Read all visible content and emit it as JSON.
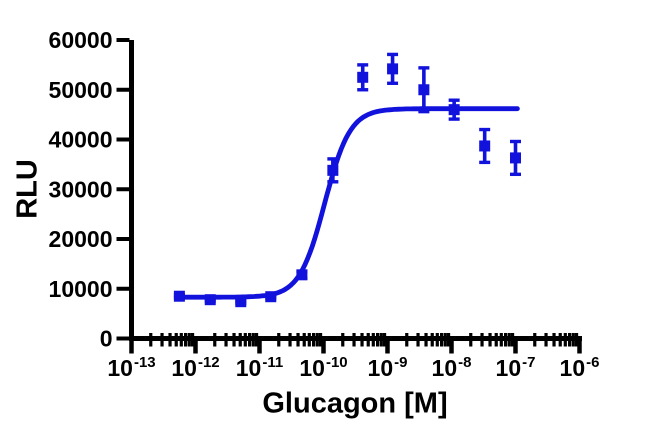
{
  "figure": {
    "background": "#ffffff",
    "series_color": "#1212dd",
    "axis_color": "#000000"
  },
  "chart_data": {
    "type": "scatter",
    "title": "",
    "xlabel": "Glucagon [M]",
    "ylabel": "RLU",
    "x_scale": "log10",
    "x_tick_base": "10",
    "x_tick_exponents": [
      -13,
      -12,
      -11,
      -10,
      -9,
      -8,
      -7,
      -6
    ],
    "xlim_log10": [
      -13,
      -6
    ],
    "ylim": [
      0,
      60000
    ],
    "y_ticks": [
      0,
      10000,
      20000,
      30000,
      40000,
      50000,
      60000
    ],
    "grid": false,
    "legend": "none",
    "marker": "filled-square",
    "error_bars": "sem-with-caps",
    "points": [
      {
        "x_molar": 5.6e-13,
        "y_rlu": 8500,
        "sem": 300
      },
      {
        "x_molar": 1.7e-12,
        "y_rlu": 7800,
        "sem": 300
      },
      {
        "x_molar": 5.1e-12,
        "y_rlu": 7400,
        "sem": 300
      },
      {
        "x_molar": 1.5e-11,
        "y_rlu": 8400,
        "sem": 300
      },
      {
        "x_molar": 4.6e-11,
        "y_rlu": 12800,
        "sem": 700
      },
      {
        "x_molar": 1.4e-10,
        "y_rlu": 33800,
        "sem": 2300
      },
      {
        "x_molar": 4.1e-10,
        "y_rlu": 52500,
        "sem": 2500
      },
      {
        "x_molar": 1.2e-09,
        "y_rlu": 54200,
        "sem": 2900
      },
      {
        "x_molar": 3.7e-09,
        "y_rlu": 50000,
        "sem": 4400
      },
      {
        "x_molar": 1.1e-08,
        "y_rlu": 46000,
        "sem": 1900
      },
      {
        "x_molar": 3.3e-08,
        "y_rlu": 38700,
        "sem": 3300
      },
      {
        "x_molar": 1e-07,
        "y_rlu": 36300,
        "sem": 3300
      }
    ],
    "fit_curve": {
      "model": "four-parameter logistic dose-response",
      "bottom_rlu": 8300,
      "top_rlu": 46200,
      "log10_ec50": -9.98,
      "ec50_molar": 1e-10,
      "hill_slope": 2.2,
      "x_range_log10": [
        -12.25,
        -6.97
      ]
    }
  }
}
